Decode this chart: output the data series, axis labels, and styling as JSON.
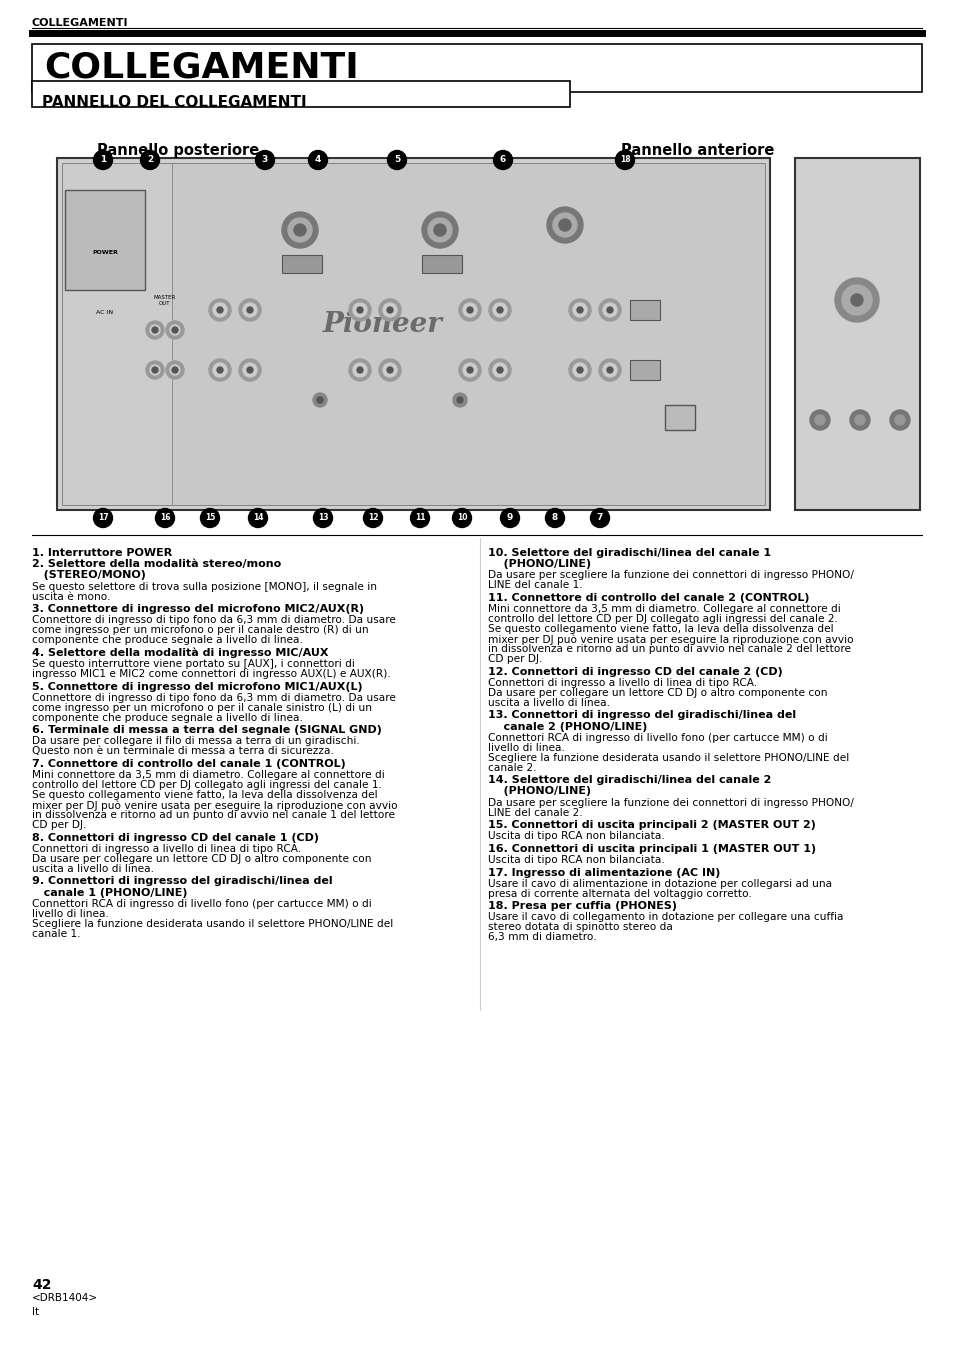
{
  "bg_color": "#ffffff",
  "header_text": "COLLEGAMENTI",
  "title_text": "COLLEGAMENTI",
  "subtitle_text": "PANNELLO DEL COLLEGAMENTI",
  "pannello_post": "Pannello posteriore",
  "pannello_ant": "Pannello anteriore",
  "page_num": "42",
  "page_sub1": "<DRB1404>",
  "page_sub2": "It",
  "left_entries": [
    [
      true,
      "1. Interruttore POWER"
    ],
    [
      true,
      "2. Selettore della modalità stereo/mono"
    ],
    [
      true,
      "   (STEREO/MONO)"
    ],
    [
      false,
      "Se questo selettore di trova sulla posizione [MONO], il segnale in"
    ],
    [
      false,
      "uscita è mono."
    ],
    [
      true,
      "3. Connettore di ingresso del microfono MIC2/AUX(R)"
    ],
    [
      false,
      "Connettore di ingresso di tipo fono da 6,3 mm di diametro. Da usare"
    ],
    [
      false,
      "come ingresso per un microfono o per il canale destro (R) di un"
    ],
    [
      false,
      "componente che produce segnale a livello di linea."
    ],
    [
      true,
      "4. Selettore della modalità di ingresso MIC/AUX"
    ],
    [
      false,
      "Se questo interruttore viene portato su [AUX], i connettori di"
    ],
    [
      false,
      "ingresso MIC1 e MIC2 come connettori di ingresso AUX(L) e AUX(R)."
    ],
    [
      true,
      "5. Connettore di ingresso del microfono MIC1/AUX(L)"
    ],
    [
      false,
      "Connettore di ingresso di tipo fono da 6,3 mm di diametro. Da usare"
    ],
    [
      false,
      "come ingresso per un microfono o per il canale sinistro (L) di un"
    ],
    [
      false,
      "componente che produce segnale a livello di linea."
    ],
    [
      true,
      "6. Terminale di messa a terra del segnale (SIGNAL GND)"
    ],
    [
      false,
      "Da usare per collegare il filo di messa a terra di un giradischi."
    ],
    [
      false,
      "Questo non è un terminale di messa a terra di sicurezza."
    ],
    [
      true,
      "7. Connettore di controllo del canale 1 (CONTROL)"
    ],
    [
      false,
      "Mini connettore da 3,5 mm di diametro. Collegare al connettore di"
    ],
    [
      false,
      "controllo del lettore CD per DJ collegato agli ingressi del canale 1."
    ],
    [
      false,
      "Se questo collegamento viene fatto, la leva della dissolvenza del"
    ],
    [
      false,
      "mixer per DJ può venire usata per eseguire la riproduzione con avvio"
    ],
    [
      false,
      "in dissolvenza e ritorno ad un punto di avvio nel canale 1 del lettore"
    ],
    [
      false,
      "CD per DJ."
    ],
    [
      true,
      "8. Connettori di ingresso CD del canale 1 (CD)"
    ],
    [
      false,
      "Connettori di ingresso a livello di linea di tipo RCA."
    ],
    [
      false,
      "Da usare per collegare un lettore CD DJ o altro componente con"
    ],
    [
      false,
      "uscita a livello di linea."
    ],
    [
      true,
      "9. Connettori di ingresso del giradischi/linea del"
    ],
    [
      true,
      "   canale 1 (PHONO/LINE)"
    ],
    [
      false,
      "Connettori RCA di ingresso di livello fono (per cartucce MM) o di"
    ],
    [
      false,
      "livello di linea."
    ],
    [
      false,
      "Scegliere la funzione desiderata usando il selettore PHONO/LINE del"
    ],
    [
      false,
      "canale 1."
    ]
  ],
  "right_entries": [
    [
      true,
      "10. Selettore del giradischi/linea del canale 1"
    ],
    [
      true,
      "    (PHONO/LINE)"
    ],
    [
      false,
      "Da usare per scegliere la funzione dei connettori di ingresso PHONO/"
    ],
    [
      false,
      "LINE del canale 1."
    ],
    [
      true,
      "11. Connettore di controllo del canale 2 (CONTROL)"
    ],
    [
      false,
      "Mini connettore da 3,5 mm di diametro. Collegare al connettore di"
    ],
    [
      false,
      "controllo del lettore CD per DJ collegato agli ingressi del canale 2."
    ],
    [
      false,
      "Se questo collegamento viene fatto, la leva della dissolvenza del"
    ],
    [
      false,
      "mixer per DJ può venire usata per eseguire la riproduzione con avvio"
    ],
    [
      false,
      "in dissolvenza e ritorno ad un punto di avvio nel canale 2 del lettore"
    ],
    [
      false,
      "CD per DJ."
    ],
    [
      true,
      "12. Connettori di ingresso CD del canale 2 (CD)"
    ],
    [
      false,
      "Connettori di ingresso a livello di linea di tipo RCA."
    ],
    [
      false,
      "Da usare per collegare un lettore CD DJ o altro componente con"
    ],
    [
      false,
      "uscita a livello di linea."
    ],
    [
      true,
      "13. Connettori di ingresso del giradischi/linea del"
    ],
    [
      true,
      "    canale 2 (PHONO/LINE)"
    ],
    [
      false,
      "Connettori RCA di ingresso di livello fono (per cartucce MM) o di"
    ],
    [
      false,
      "livello di linea."
    ],
    [
      false,
      "Scegliere la funzione desiderata usando il selettore PHONO/LINE del"
    ],
    [
      false,
      "canale 2."
    ],
    [
      true,
      "14. Selettore del giradischi/linea del canale 2"
    ],
    [
      true,
      "    (PHONO/LINE)"
    ],
    [
      false,
      "Da usare per scegliere la funzione dei connettori di ingresso PHONO/"
    ],
    [
      false,
      "LINE del canale 2."
    ],
    [
      true,
      "15. Connettori di uscita principali 2 (MASTER OUT 2)"
    ],
    [
      false,
      "Uscita di tipo RCA non bilanciata."
    ],
    [
      true,
      "16. Connettori di uscita principali 1 (MASTER OUT 1)"
    ],
    [
      false,
      "Uscita di tipo RCA non bilanciata."
    ],
    [
      true,
      "17. Ingresso di alimentazione (AC IN)"
    ],
    [
      false,
      "Usare il cavo di alimentazione in dotazione per collegarsi ad una"
    ],
    [
      false,
      "presa di corrente alternata del voltaggio corretto."
    ],
    [
      true,
      "18. Presa per cuffia (PHONES)"
    ],
    [
      false,
      "Usare il cavo di collegamento in dotazione per collegare una cuffia"
    ],
    [
      false,
      "stereo dotata di spinotto stereo da"
    ],
    [
      false,
      "6,3 mm di diametro."
    ]
  ]
}
